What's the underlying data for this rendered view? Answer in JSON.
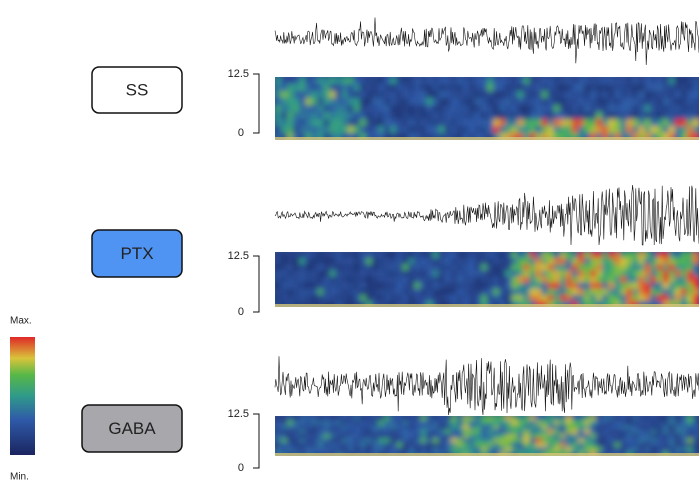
{
  "panels": [
    {
      "label": "SS",
      "y_axis": {
        "top": 12.5,
        "bottom": 0
      }
    },
    {
      "label": "PTX",
      "y_axis": {
        "top": 12.5,
        "bottom": 0
      }
    },
    {
      "label": "GABA",
      "y_axis": {
        "top": 12.5,
        "bottom": 0
      }
    }
  ],
  "colorbar": {
    "max_label": "Max.",
    "min_label": "Min."
  }
}
